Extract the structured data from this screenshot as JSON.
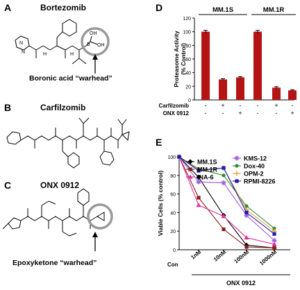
{
  "panels": {
    "A": {
      "letter": "A",
      "drug": "Bortezomib",
      "warhead_label": "Boronic acid “warhead”",
      "atoms": {
        "oh1": "OH",
        "b": "B",
        "oh2": "OH",
        "n1": "N",
        "n2": "N",
        "nh1": "H",
        "nh2": "H"
      }
    },
    "B": {
      "letter": "B",
      "drug": "Carfilzomib"
    },
    "C": {
      "letter": "C",
      "drug": "ONX 0912",
      "warhead_label": "Epoxyketone “warhead”"
    },
    "D": {
      "letter": "D"
    },
    "E": {
      "letter": "E"
    }
  },
  "colors": {
    "bar": "#b51414",
    "ms1s": "#000000",
    "mm1r": "#8b1a1a",
    "ina6": "#e0339a",
    "kms12": "#9b59e0",
    "dox40": "#2e8b2e",
    "opm2": "#e8a33a",
    "rpmi": "#1a1ab5"
  },
  "chart_data": [
    {
      "type": "bar",
      "groups": [
        "MM.1S",
        "MM.1R"
      ],
      "values": [
        100,
        30,
        33,
        100,
        18,
        14
      ],
      "errors": [
        2,
        1,
        1,
        2,
        1.5,
        1
      ],
      "ylabel": "Proteasome Activity\n(% Control)",
      "ylim": [
        0,
        120
      ],
      "yticks": [
        "0",
        "20",
        "40",
        "60",
        "80",
        "100",
        "120"
      ],
      "treatment_rows": [
        {
          "name": "Carfilzomib",
          "signs": [
            "-",
            "+",
            "-",
            "-",
            "+",
            "-"
          ]
        },
        {
          "name": "ONX 0912",
          "signs": [
            "-",
            "-",
            "+",
            "-",
            "-",
            "+"
          ]
        }
      ]
    },
    {
      "type": "line",
      "x": [
        "Con",
        "1nM",
        "10nM",
        "100nM",
        "1000nM"
      ],
      "xlabel": "ONX 0912",
      "ylabel": "Viable Cells (% control)",
      "ylim": [
        0,
        100
      ],
      "yticks": [
        "0",
        "20",
        "40",
        "60",
        "80",
        "100"
      ],
      "legend_position": "top-right",
      "series": [
        {
          "name": "MM.1S",
          "values": [
            100,
            78,
            37,
            5,
            2
          ]
        },
        {
          "name": "MM.1R",
          "values": [
            100,
            56,
            22,
            3,
            2
          ]
        },
        {
          "name": "INA-6",
          "values": [
            100,
            48,
            36,
            13,
            6
          ]
        },
        {
          "name": "KMS-12",
          "values": [
            100,
            73,
            72,
            37,
            10
          ]
        },
        {
          "name": "Dox-40",
          "values": [
            100,
            87,
            80,
            47,
            23
          ]
        },
        {
          "name": "OPM-2",
          "values": [
            100,
            86,
            88,
            43,
            20
          ]
        },
        {
          "name": "RPMI-8226",
          "values": [
            100,
            85,
            88,
            40,
            17
          ]
        }
      ]
    }
  ]
}
